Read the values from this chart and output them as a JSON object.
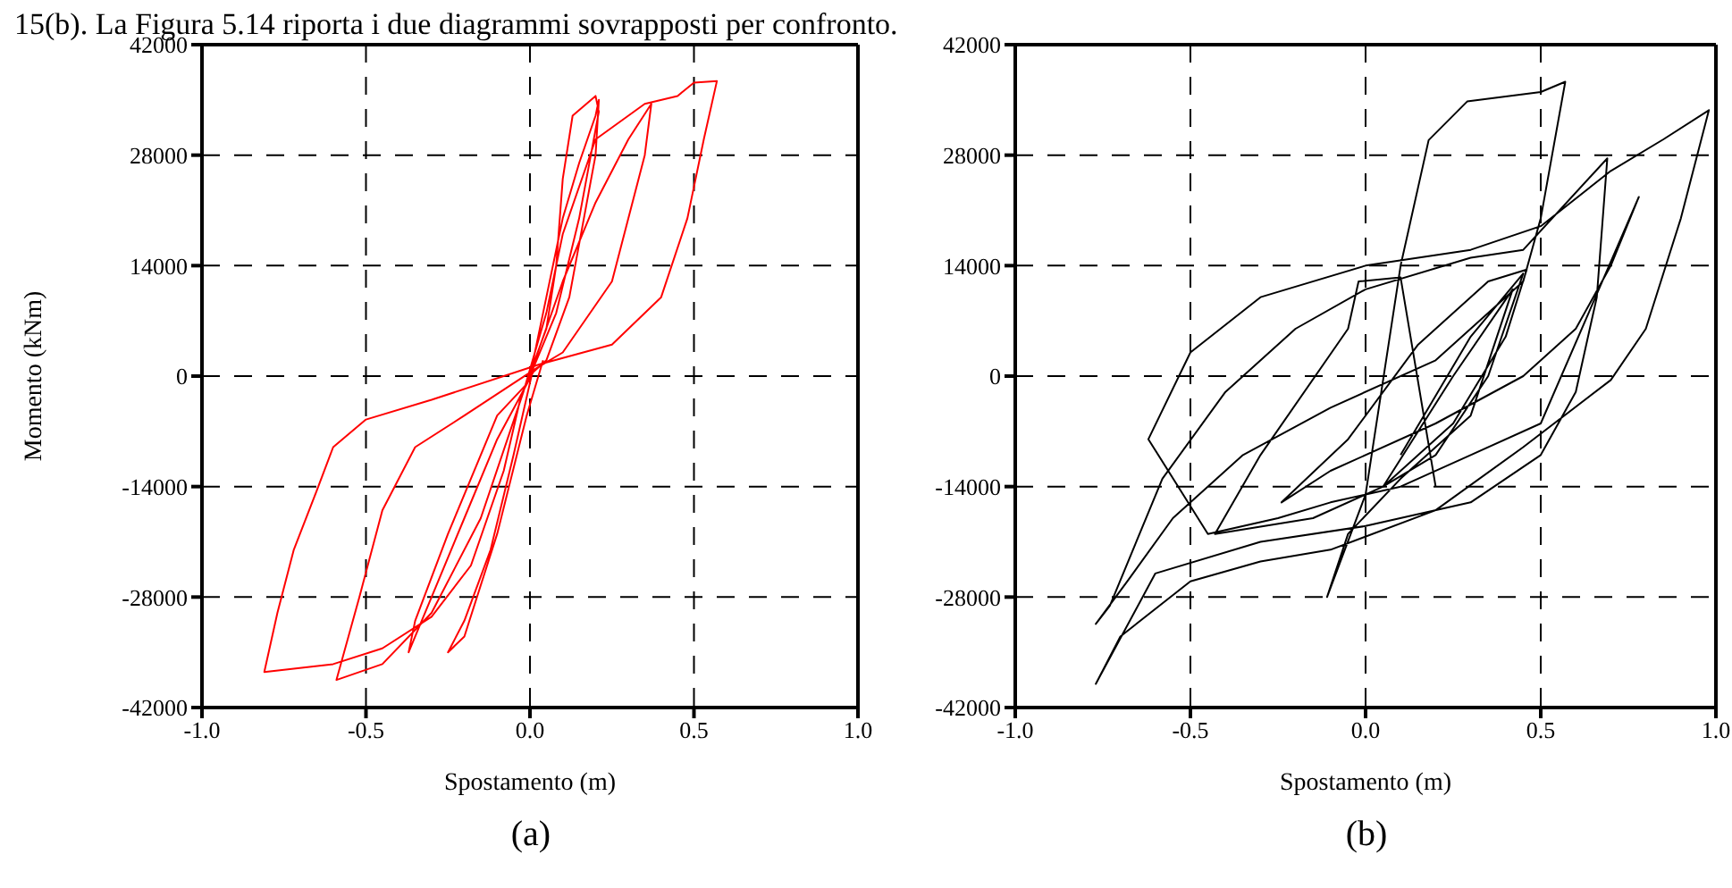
{
  "chart_data": [
    {
      "type": "line",
      "title": "(a)",
      "xlabel": "Spostamento (m)",
      "ylabel": "Momento (kNm)",
      "annotations": [
        "15(b). La Figura 5.14 riporta i due diagrammi sovrapposti per confronto."
      ],
      "xlim": [
        -1,
        1
      ],
      "xticks": [
        {
          "value": -1,
          "label": "-1.0"
        },
        {
          "value": -0.5,
          "label": "-0.5"
        },
        {
          "value": 0,
          "label": "0.0"
        },
        {
          "value": 0.5,
          "label": "0.5"
        },
        {
          "value": 1,
          "label": "1.0"
        }
      ],
      "ylim": [
        -42000,
        42000
      ],
      "yticks": [
        -42000,
        -28000,
        -14000,
        0,
        14000,
        28000,
        42000
      ],
      "grid": true,
      "marker": "none",
      "series": [
        {
          "color": "#ff0000",
          "x": [
            0,
            0.05,
            0.1,
            0.15,
            0.2,
            0.21,
            0.2,
            0.12,
            0.05,
            0.01,
            -0.1,
            -0.2,
            -0.3,
            -0.37,
            -0.35,
            -0.25,
            -0.1,
            -0.01,
            0.1,
            0.2,
            0.3,
            0.37,
            0.35,
            0.25,
            0.1,
            0.02,
            -0.2,
            -0.35,
            -0.45,
            -0.52,
            -0.59,
            -0.45,
            -0.3,
            -0.15,
            -0.02,
            0.05,
            0.1,
            0.2,
            0.35,
            0.45,
            0.5,
            0.57,
            0.53,
            0.48,
            0.4,
            0.25,
            0.03,
            -0.3,
            -0.5,
            -0.6,
            -0.65,
            -0.72,
            -0.77,
            -0.81,
            -0.6,
            -0.45,
            -0.3,
            -0.18,
            -0.08,
            -0.03,
            0.05,
            0.08,
            0.1,
            0.13,
            0.2,
            0.21,
            0.15,
            0.08,
            0.01,
            -0.05,
            -0.12,
            -0.2,
            -0.25,
            -0.2,
            -0.1,
            -0.01,
            0.04
          ],
          "values": [
            0,
            10000,
            20000,
            27000,
            33000,
            35000,
            28000,
            10000,
            2000,
            500,
            -8000,
            -18000,
            -28000,
            -35000,
            -31000,
            -20000,
            -5000,
            -1000,
            12000,
            22000,
            30000,
            34500,
            28000,
            12000,
            3000,
            1000,
            -5000,
            -9000,
            -17000,
            -28000,
            -38500,
            -36500,
            -30000,
            -18000,
            -2000,
            8000,
            18000,
            30000,
            34500,
            35500,
            37200,
            37400,
            30000,
            20000,
            10000,
            4000,
            1500,
            -3000,
            -5500,
            -9000,
            -14500,
            -22000,
            -30000,
            -37500,
            -36500,
            -34500,
            -30500,
            -24000,
            -12000,
            -3000,
            6000,
            14000,
            25000,
            33000,
            35500,
            33500,
            20000,
            8000,
            1000,
            -10000,
            -22000,
            -31000,
            -35000,
            -33000,
            -20000,
            -5000,
            2000
          ]
        }
      ]
    },
    {
      "type": "line",
      "title": "(b)",
      "xlabel": "Spostamento (m)",
      "xlim": [
        -1,
        1
      ],
      "xticks": [
        {
          "value": -1,
          "label": "-1.0"
        },
        {
          "value": -0.5,
          "label": "-0.5"
        },
        {
          "value": 0,
          "label": "0.0"
        },
        {
          "value": 0.5,
          "label": "0.5"
        },
        {
          "value": 1,
          "label": "1.0"
        }
      ],
      "ylim": [
        -42000,
        42000
      ],
      "yticks": [
        -42000,
        -28000,
        -14000,
        0,
        14000,
        28000,
        42000
      ],
      "grid": true,
      "marker": "none",
      "series": [
        {
          "color": "#000000",
          "x": [
            0.1,
            0.3,
            0.45,
            0.35,
            0.2,
            0.05,
            0.25,
            0.42,
            0.3,
            0.1,
            -0.05,
            -0.11,
            0,
            0.1,
            0.18,
            0.29,
            0.5,
            0.57,
            0.5,
            0.45,
            0.2,
            -0.1,
            -0.35,
            -0.55,
            -0.68,
            -0.77,
            -0.73,
            -0.58,
            -0.4,
            -0.2,
            0,
            0.3,
            0.45,
            0.69,
            0.66,
            0.6,
            0.5,
            0.3,
            0,
            -0.3,
            -0.6,
            -0.77,
            -0.7,
            -0.5,
            -0.3,
            -0.1,
            0.2,
            0.45,
            0.7,
            0.8,
            0.9,
            0.98,
            0.85,
            0.7,
            0.5,
            0.3,
            0,
            -0.3,
            -0.5,
            -0.62,
            -0.45,
            -0.25,
            -0.1,
            0.1,
            0.3,
            0.5,
            0.78,
            0.7,
            0.6,
            0.45,
            0.2,
            -0.1,
            -0.24,
            -0.05,
            0.15,
            0.35,
            0.46,
            0.4,
            0.25,
            0.05,
            -0.15,
            -0.43,
            -0.3,
            -0.05,
            -0.02,
            0.1,
            0.2
          ],
          "values": [
            -10000,
            5000,
            13000,
            0,
            -10000,
            -14000,
            0,
            11000,
            -5000,
            -13000,
            -20000,
            -28000,
            -15000,
            14000,
            29900,
            34800,
            36000,
            37300,
            20000,
            12000,
            2000,
            -4000,
            -10000,
            -18000,
            -26000,
            -31400,
            -29100,
            -13000,
            -2000,
            6000,
            11000,
            15000,
            16000,
            27600,
            10000,
            -2000,
            -10000,
            -16000,
            -19000,
            -21000,
            -25000,
            -39000,
            -33000,
            -26000,
            -23500,
            -22000,
            -17000,
            -9000,
            -500,
            6000,
            20000,
            33700,
            30000,
            26000,
            19000,
            16000,
            14000,
            10000,
            3000,
            -8000,
            -20000,
            -18000,
            -16000,
            -14000,
            -10000,
            -6000,
            22700,
            14000,
            6000,
            0,
            -6000,
            -12000,
            -16000,
            -8000,
            4000,
            12000,
            13500,
            5000,
            -6000,
            -14000,
            -18000,
            -20000,
            -10000,
            6000,
            12000,
            12500,
            -14000
          ]
        }
      ]
    }
  ]
}
